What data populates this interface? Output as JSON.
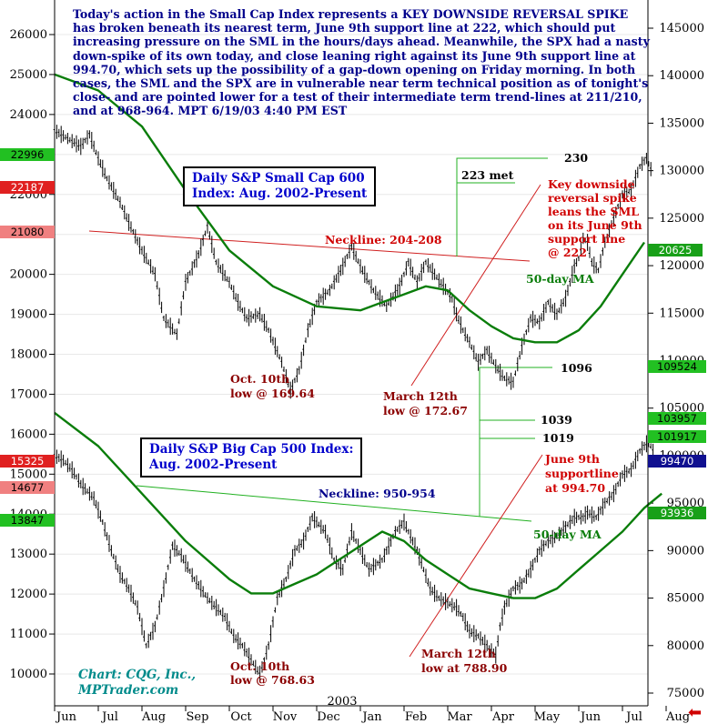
{
  "commentary": "Today's action in the Small Cap Index represents a KEY DOWNSIDE REVERSAL SPIKE has broken beneath its nearest term, June 9th support line at 222, which should put increasing pressure on the SML in the hours/days ahead. Meanwhile, the SPX had a nasty down-spike of its own today, and close leaning right against its June 9th support line at 994.70, which sets up the possibility of a gap-down opening on Friday morning. In both cases, the SML and the SPX are in vulnerable near term technical position as of tonight's close- and are pointed lower for a test of their intermediate term trend-lines at 211/210, and at 968-964.  MPT 6/19/03  4:40 PM EST",
  "credit": {
    "line1": "Chart: CQG, Inc.,",
    "line2": "MPTrader.com"
  },
  "colors": {
    "commentary": "#00008b",
    "price": "#000000",
    "ma": "#0a7d0a",
    "neckline_sml": "#d02020",
    "neckline_spx": "#20b020",
    "support": "#d02020",
    "callout": "#20b020",
    "annot_red": "#d00000",
    "annot_dark": "#8b0000"
  },
  "icons": {
    "corner": "red-left-arrow-icon"
  },
  "chart_data": [
    {
      "type": "line",
      "title": "Daily S&P Small Cap 600 Index: Aug. 2002-Present",
      "title_line1": "Daily S&P Small Cap 600",
      "title_line2": "Index: Aug. 2002-Present",
      "y_axis": "left",
      "ylim": [
        9800,
        26600
      ],
      "ticks": [
        10000,
        11000,
        12000,
        13000,
        14000,
        15000,
        16000,
        17000,
        18000,
        19000,
        20000,
        21000,
        22000,
        23000,
        24000,
        25000,
        26000
      ],
      "series": [
        {
          "name": "",
          "kind": "price",
          "x": [
            0.0,
            0.3,
            0.6,
            0.8,
            1.0,
            1.2,
            1.5,
            1.7,
            2.0,
            2.3,
            2.5,
            2.8,
            3.0,
            3.3,
            3.5,
            3.7,
            4.0,
            4.2,
            4.4,
            4.7,
            4.9,
            5.2,
            5.4,
            5.6,
            5.8,
            6.0,
            6.3,
            6.6,
            6.8,
            7.0,
            7.3,
            7.6,
            7.9,
            8.1,
            8.3,
            8.5,
            8.7,
            8.9,
            9.1,
            9.2,
            9.35,
            9.5,
            9.7,
            9.9,
            10.1,
            10.3,
            10.5,
            10.7,
            10.9,
            11.1,
            11.3,
            11.5,
            11.7,
            11.8,
            11.9,
            12.0,
            12.1,
            12.2,
            12.3,
            12.45
          ],
          "y": [
            23600,
            23400,
            23200,
            23500,
            22900,
            22400,
            21800,
            21300,
            20600,
            20000,
            18900,
            18500,
            19800,
            20500,
            21200,
            20300,
            19800,
            19300,
            18900,
            19000,
            18600,
            17800,
            17100,
            17600,
            18600,
            19300,
            19600,
            20200,
            20700,
            20200,
            19600,
            19200,
            19700,
            20300,
            19800,
            20300,
            20000,
            19700,
            19400,
            19000,
            18600,
            18300,
            17800,
            18100,
            17700,
            17400,
            17300,
            18200,
            18900,
            18800,
            19300,
            19000,
            19400,
            19800,
            20200,
            20400,
            20900,
            20800,
            20300,
            20100
          ]
        },
        {
          "name": "",
          "kind": "price",
          "x": [
            12.45,
            12.6,
            12.8,
            13.0,
            13.2,
            13.4,
            13.55,
            13.7
          ],
          "y": [
            20100,
            20800,
            21400,
            22000,
            22100,
            22700,
            22900,
            22500
          ]
        },
        {
          "name": "50-day MA",
          "kind": "ma",
          "x": [
            0.0,
            1.0,
            2.0,
            3.0,
            4.0,
            5.0,
            6.0,
            7.0,
            7.5,
            8.0,
            8.5,
            9.0,
            9.5,
            10.0,
            10.5,
            11.0,
            11.5,
            12.0,
            12.5,
            13.0,
            13.5
          ],
          "y": [
            25000,
            24600,
            23700,
            22100,
            20600,
            19700,
            19200,
            19100,
            19300,
            19500,
            19700,
            19600,
            19100,
            18700,
            18400,
            18300,
            18300,
            18600,
            19200,
            20000,
            20800
          ]
        }
      ],
      "annotations": [
        {
          "text": "Neckline: 204-208",
          "color": "#d00000"
        },
        {
          "text": "50-day MA",
          "color": "#0a7d0a"
        },
        {
          "text": "Oct. 10th",
          "color": "#8b0000"
        },
        {
          "text": "low @ 169.64",
          "color": "#8b0000"
        },
        {
          "text": "March 12th",
          "color": "#8b0000"
        },
        {
          "text": "low @ 172.67",
          "color": "#8b0000"
        },
        {
          "text": "223 met",
          "color": "#000000"
        },
        {
          "text": "230",
          "color": "#000000"
        },
        {
          "text": "Key downside",
          "color": "#d00000"
        },
        {
          "text": "reversal spike",
          "color": "#d00000"
        },
        {
          "text": "leans the SML",
          "color": "#d00000"
        },
        {
          "text": "on its June 9th",
          "color": "#d00000"
        },
        {
          "text": "support line",
          "color": "#d00000"
        },
        {
          "text": "@ 222",
          "color": "#d00000"
        }
      ],
      "price_tags": [
        "22996",
        "22187",
        "21080",
        "20625"
      ]
    },
    {
      "type": "line",
      "title": "Daily S&P Big Cap 500 Index: Aug. 2002-Present",
      "title_line1": "Daily S&P Big Cap 500 Index:",
      "title_line2": "Aug. 2002-Present",
      "y_axis": "right",
      "ylim": [
        73000,
        148500
      ],
      "ticks": [
        75000,
        80000,
        85000,
        90000,
        95000,
        100000,
        105000,
        110000,
        115000,
        120000,
        125000,
        130000,
        135000,
        140000,
        145000
      ],
      "series": [
        {
          "name": "",
          "kind": "price",
          "x": [
            0.0,
            0.2,
            0.4,
            0.6,
            0.9,
            1.1,
            1.3,
            1.5,
            1.7,
            1.9,
            2.1,
            2.3,
            2.5,
            2.7,
            2.9,
            3.2,
            3.5,
            3.7,
            3.9,
            4.1,
            4.3,
            4.5,
            4.7,
            4.9,
            5.1,
            5.3,
            5.5,
            5.7,
            5.9,
            6.2,
            6.4,
            6.6,
            6.8,
            7.0,
            7.2,
            7.5,
            7.8,
            8.0,
            8.3,
            8.6,
            8.8,
            9.0,
            9.2,
            9.35,
            9.5,
            9.7,
            9.9,
            10.1,
            10.2,
            10.3,
            10.5,
            10.7,
            10.9,
            11.1,
            11.3,
            11.5,
            11.7,
            11.9,
            12.1,
            12.2,
            12.4
          ],
          "y": [
            1000,
            995,
            985,
            970,
            955,
            930,
            900,
            875,
            860,
            840,
            800,
            820,
            860,
            905,
            895,
            870,
            850,
            840,
            830,
            810,
            800,
            785,
            770,
            800,
            850,
            870,
            900,
            910,
            935,
            920,
            890,
            880,
            920,
            900,
            880,
            890,
            920,
            930,
            900,
            860,
            850,
            845,
            840,
            830,
            815,
            810,
            800,
            790,
            820,
            840,
            860,
            865,
            880,
            900,
            910,
            915,
            925,
            935,
            935,
            940,
            935
          ]
        },
        {
          "name": "",
          "kind": "price",
          "x": [
            12.4,
            12.6,
            12.8,
            13.0,
            13.2,
            13.4,
            13.6,
            13.75
          ],
          "y": [
            935,
            950,
            960,
            980,
            985,
            1005,
            1015,
            1000
          ]
        },
        {
          "name": "50-day MA",
          "kind": "ma",
          "x": [
            0.0,
            1.0,
            2.0,
            2.5,
            3.0,
            4.0,
            4.5,
            5.0,
            5.5,
            6.0,
            6.5,
            7.0,
            7.5,
            8.0,
            8.5,
            9.0,
            9.5,
            10.0,
            10.5,
            11.0,
            11.5,
            12.0,
            12.5,
            13.0,
            13.5,
            13.9
          ],
          "y": [
            1045,
            1010,
            960,
            935,
            910,
            870,
            855,
            855,
            865,
            875,
            890,
            905,
            920,
            910,
            890,
            875,
            860,
            855,
            850,
            850,
            860,
            880,
            900,
            920,
            945,
            960
          ]
        }
      ],
      "annotations": [
        {
          "text": "Neckline: 950-954",
          "color": "#00008b"
        },
        {
          "text": "50-day MA",
          "color": "#0a7d0a"
        },
        {
          "text": "Oct. 10th",
          "color": "#8b0000"
        },
        {
          "text": "low @ 768.63",
          "color": "#8b0000"
        },
        {
          "text": "March 12th",
          "color": "#8b0000"
        },
        {
          "text": "low at 788.90",
          "color": "#8b0000"
        },
        {
          "text": "1096",
          "color": "#000000"
        },
        {
          "text": "1039",
          "color": "#000000"
        },
        {
          "text": "1019",
          "color": "#000000"
        },
        {
          "text": "June 9th",
          "color": "#d00000"
        },
        {
          "text": "supportline",
          "color": "#d00000"
        },
        {
          "text": "at 994.70",
          "color": "#d00000"
        }
      ],
      "price_tags_left": [
        "15325",
        "14677",
        "13847"
      ],
      "price_tags_right": [
        "109524",
        "103957",
        "101917",
        "99470",
        "93936"
      ]
    }
  ],
  "x_axis": {
    "months": [
      "Jun",
      "Jul",
      "Aug",
      "Sep",
      "Oct",
      "Nov",
      "Dec",
      "Jan",
      "Feb",
      "Mar",
      "Apr",
      "May",
      "Jun",
      "Jul",
      "Aug"
    ],
    "year_label": "2003"
  }
}
